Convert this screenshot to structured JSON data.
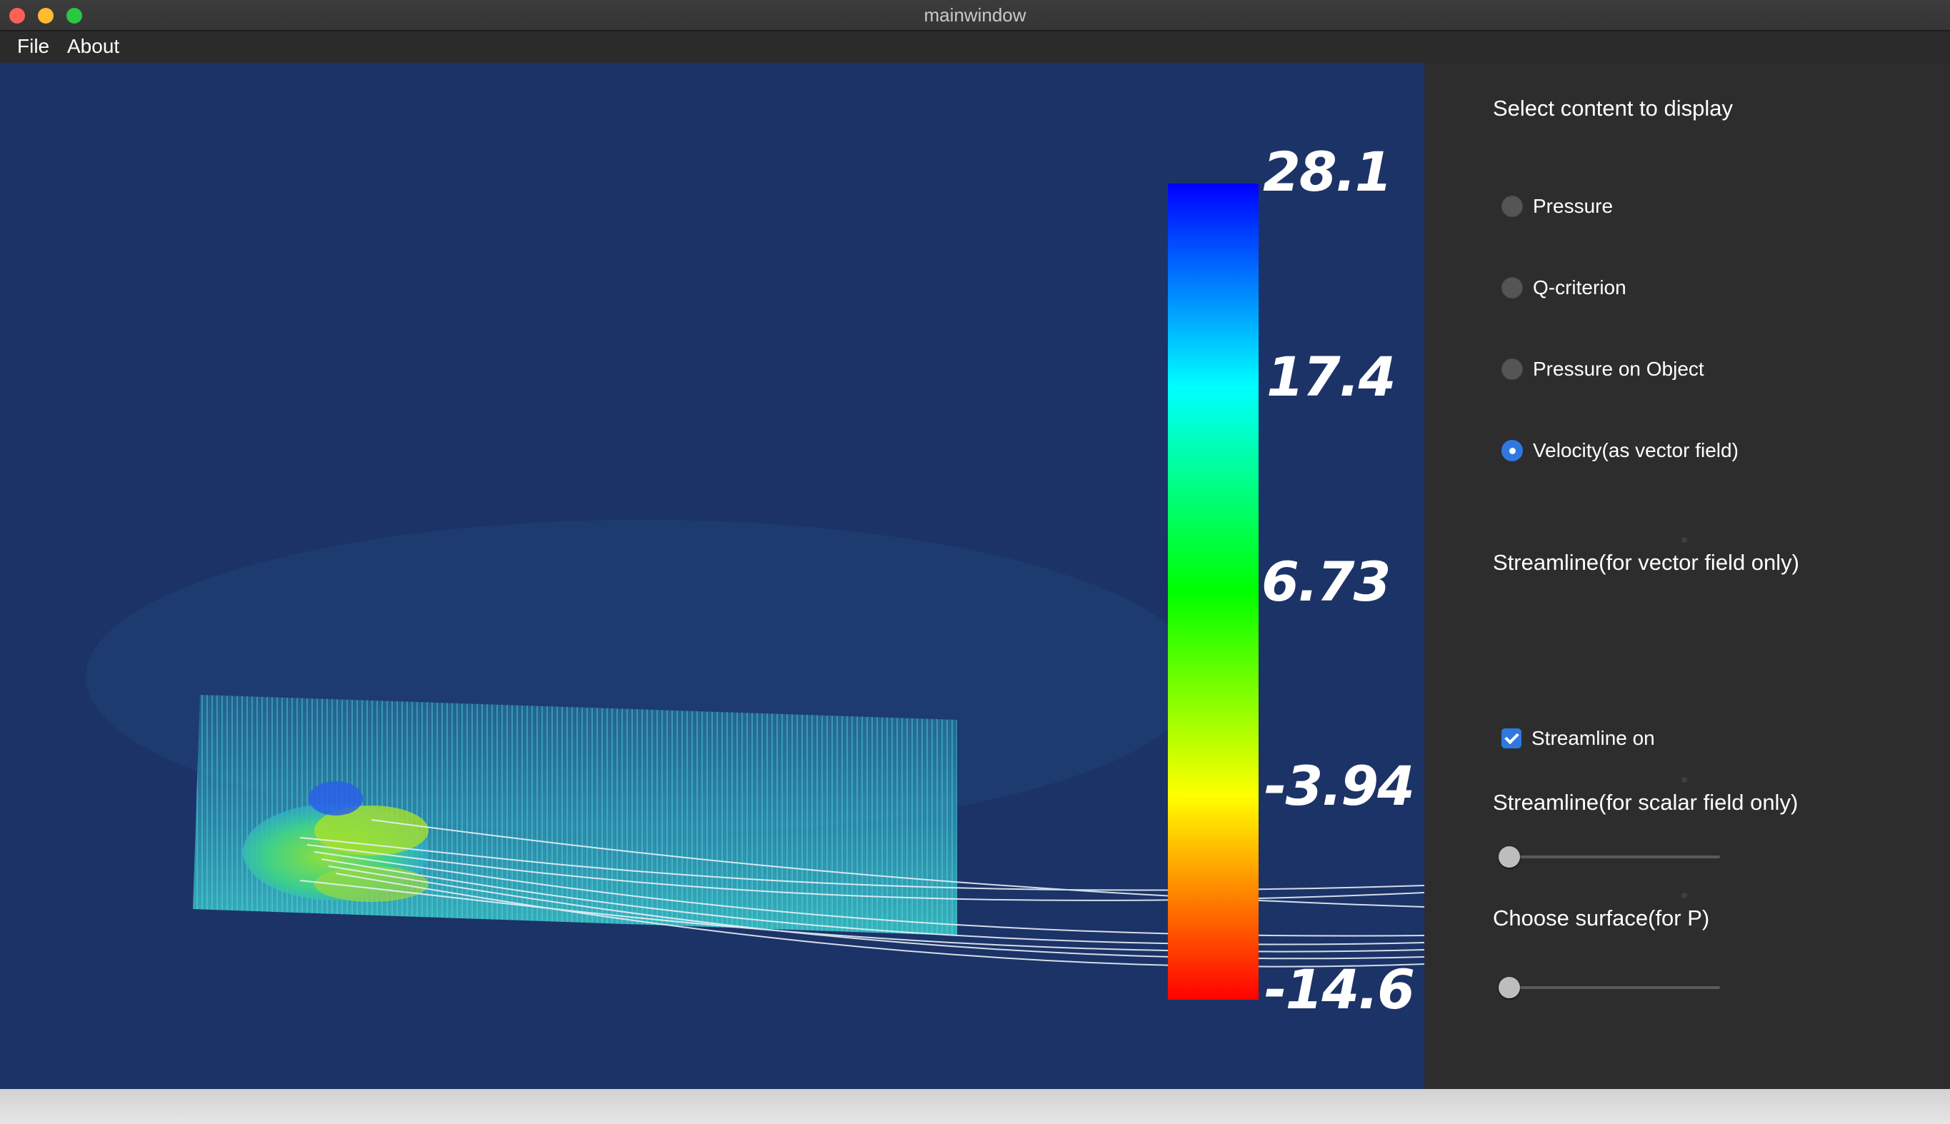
{
  "window": {
    "title": "mainwindow"
  },
  "menu": {
    "items": [
      "File",
      "About"
    ]
  },
  "viewport": {
    "background": "#1b3366",
    "colorbar": {
      "labels": [
        "28.1",
        "17.4",
        "6.73",
        "-3.94",
        "-14.6"
      ],
      "max": 28.1,
      "min": -14.6,
      "colors": [
        "#0000ff",
        "#00ffff",
        "#00ff00",
        "#ffff00",
        "#ff0000"
      ]
    }
  },
  "panel": {
    "select_heading": "Select content to display",
    "options": [
      {
        "label": "Pressure",
        "checked": false
      },
      {
        "label": "Q-criterion",
        "checked": false
      },
      {
        "label": "Pressure on Object",
        "checked": false
      },
      {
        "label": "Velocity(as vector field)",
        "checked": true
      }
    ],
    "streamline_vector_heading": "Streamline(for vector field only)",
    "streamline_checkbox": {
      "label": "Streamline on",
      "checked": true
    },
    "streamline_scalar_heading": "Streamline(for scalar field only)",
    "surface_heading": "Choose surface(for P)",
    "accent_color": "#2f78e0"
  }
}
